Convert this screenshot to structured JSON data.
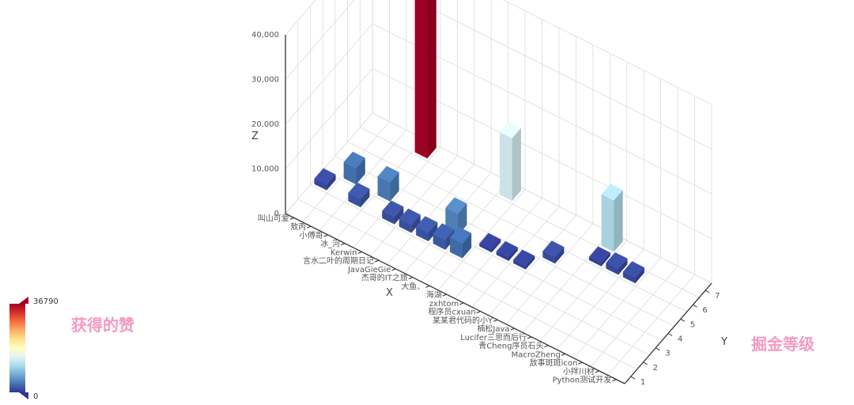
{
  "chart_data": {
    "type": "bar3d",
    "title": "",
    "x_axis": {
      "name": "X",
      "categories": [
        "叫山可爱",
        "敖丙",
        "小傅哥",
        "冰_河",
        "Kerwin",
        "言水二叶的周期日记",
        "JavaGieGie",
        "杰哥的IT之旅",
        "大鱼、",
        "海湖",
        "zxhtom",
        "程序员cxuan",
        "某某君代码的小Y",
        "楠松Java",
        "Lucifer三思而后行",
        "青Cheng序员石头",
        "MacroZheng",
        "敌事斑斑icon",
        "小拌川材",
        "Python测试开发"
      ]
    },
    "y_axis": {
      "name": "Y",
      "categories": [
        "1",
        "2",
        "3",
        "4",
        "5",
        "6",
        "7"
      ]
    },
    "z_axis": {
      "name": "Z",
      "range": [
        0,
        40000
      ],
      "ticks": [
        0,
        10000,
        20000,
        30000,
        40000
      ],
      "tick_labels": [
        "0",
        "10,000",
        "20,000",
        "30,000",
        "40,000"
      ]
    },
    "bars": [
      {
        "x": "叫山可爱",
        "y": "3",
        "value": 1200
      },
      {
        "x": "敖丙",
        "y": "4",
        "value": 3600
      },
      {
        "x": "小傅哥",
        "y": "3",
        "value": 1800
      },
      {
        "x": "冰_河",
        "y": "4",
        "value": 4200
      },
      {
        "x": "冰_河",
        "y": "7",
        "value": 36790
      },
      {
        "x": "Kerwin",
        "y": "3",
        "value": 1600
      },
      {
        "x": "言水二叶的周期日记",
        "y": "3",
        "value": 1700
      },
      {
        "x": "JavaGieGie",
        "y": "3",
        "value": 1900
      },
      {
        "x": "杰哥的IT之旅",
        "y": "3",
        "value": 2200
      },
      {
        "x": "杰哥的IT之旅",
        "y": "4",
        "value": 4800
      },
      {
        "x": "大鱼、",
        "y": "3",
        "value": 3300
      },
      {
        "x": "大鱼、",
        "y": "7",
        "value": 14000
      },
      {
        "x": "海湖",
        "y": "4",
        "value": 600
      },
      {
        "x": "zxhtom",
        "y": "4",
        "value": 700
      },
      {
        "x": "程序员cxuan",
        "y": "4",
        "value": 700
      },
      {
        "x": "某某君代码的小Y",
        "y": "5",
        "value": 1400
      },
      {
        "x": "Lucifer三思而后行",
        "y": "6",
        "value": 700
      },
      {
        "x": "Lucifer三思而后行",
        "y": "7",
        "value": 11500
      },
      {
        "x": "青Cheng序员石头",
        "y": "6",
        "value": 1300
      },
      {
        "x": "MacroZheng",
        "y": "6",
        "value": 1200
      }
    ],
    "visual_map": {
      "min": 0,
      "max": 36790,
      "min_label": "0",
      "max_label": "36790",
      "colors": [
        "#313695",
        "#4575b4",
        "#74add1",
        "#abd9e9",
        "#e0f3f8",
        "#ffffbf",
        "#fee090",
        "#fdae61",
        "#f46d43",
        "#d73027",
        "#a50026"
      ]
    },
    "annotations": {
      "left": "获得的赞",
      "right": "掘金等级"
    }
  }
}
